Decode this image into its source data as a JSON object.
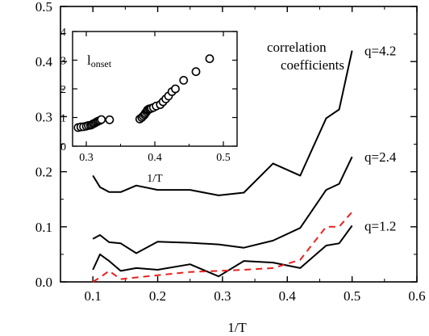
{
  "chart_data": {
    "type": "line",
    "xlabel": "1/T",
    "ylabel": "",
    "xlim": [
      0.05,
      0.6
    ],
    "ylim": [
      0.0,
      0.5
    ],
    "xticks": [
      0.1,
      0.2,
      0.3,
      0.4,
      0.5,
      0.6
    ],
    "yticks": [
      0.0,
      0.1,
      0.2,
      0.3,
      0.4,
      0.5
    ],
    "grid": false,
    "annotations": {
      "heading_line1": "correlation",
      "heading_line2": "coefficients"
    },
    "series": [
      {
        "name": "q=4.2",
        "label": "q=4.2",
        "color": "#000000",
        "dash": "solid",
        "x": [
          0.1,
          0.111,
          0.125,
          0.143,
          0.167,
          0.2,
          0.25,
          0.294,
          0.333,
          0.378,
          0.42,
          0.46,
          0.48,
          0.5
        ],
        "y": [
          0.193,
          0.172,
          0.163,
          0.163,
          0.175,
          0.167,
          0.167,
          0.157,
          0.162,
          0.215,
          0.193,
          0.297,
          0.313,
          0.42
        ]
      },
      {
        "name": "q=2.4",
        "label": "q=2.4",
        "color": "#000000",
        "dash": "solid",
        "x": [
          0.1,
          0.111,
          0.125,
          0.143,
          0.167,
          0.2,
          0.25,
          0.294,
          0.333,
          0.378,
          0.42,
          0.46,
          0.48,
          0.5
        ],
        "y": [
          0.078,
          0.085,
          0.072,
          0.07,
          0.052,
          0.073,
          0.071,
          0.068,
          0.062,
          0.075,
          0.098,
          0.167,
          0.178,
          0.227
        ]
      },
      {
        "name": "q=1.2",
        "label": "q=1.2",
        "color": "#000000",
        "dash": "solid",
        "x": [
          0.1,
          0.111,
          0.125,
          0.143,
          0.167,
          0.2,
          0.25,
          0.294,
          0.333,
          0.378,
          0.42,
          0.46,
          0.48,
          0.5
        ],
        "y": [
          0.022,
          0.05,
          0.038,
          0.02,
          0.025,
          0.022,
          0.032,
          0.01,
          0.038,
          0.035,
          0.025,
          0.066,
          0.07,
          0.102
        ]
      },
      {
        "name": "",
        "label": "",
        "color": "#e8211c",
        "dash": "dashed",
        "x": [
          0.1,
          0.111,
          0.125,
          0.143,
          0.167,
          0.2,
          0.25,
          0.294,
          0.333,
          0.378,
          0.42,
          0.46,
          0.48,
          0.5
        ],
        "y": [
          0.0,
          0.008,
          0.02,
          0.005,
          0.008,
          0.012,
          0.018,
          0.02,
          0.022,
          0.025,
          0.04,
          0.1,
          0.1,
          0.127
        ]
      }
    ],
    "inset": {
      "type": "scatter",
      "xlabel": "1/T",
      "ylabel_text": "l",
      "ylabel_subscript": "onset",
      "xlim": [
        0.28,
        0.52
      ],
      "ylim": [
        0,
        4
      ],
      "xticks": [
        0.3,
        0.4,
        0.5
      ],
      "yticks": [
        0,
        1,
        2,
        3,
        4
      ],
      "x": [
        0.288,
        0.292,
        0.296,
        0.3,
        0.303,
        0.306,
        0.308,
        0.31,
        0.312,
        0.314,
        0.316,
        0.318,
        0.32,
        0.322,
        0.334,
        0.378,
        0.381,
        0.383,
        0.385,
        0.386,
        0.388,
        0.389,
        0.39,
        0.392,
        0.393,
        0.395,
        0.398,
        0.402,
        0.408,
        0.412,
        0.416,
        0.42,
        0.425,
        0.43,
        0.442,
        0.46,
        0.48
      ],
      "y": [
        0.65,
        0.67,
        0.68,
        0.7,
        0.72,
        0.73,
        0.75,
        0.78,
        0.8,
        0.83,
        0.86,
        0.88,
        0.9,
        0.93,
        0.92,
        0.95,
        1.0,
        1.05,
        1.1,
        1.15,
        1.2,
        1.25,
        1.28,
        1.3,
        1.3,
        1.32,
        1.35,
        1.4,
        1.45,
        1.55,
        1.65,
        1.75,
        1.9,
        2.0,
        2.3,
        2.6,
        3.05
      ]
    }
  }
}
